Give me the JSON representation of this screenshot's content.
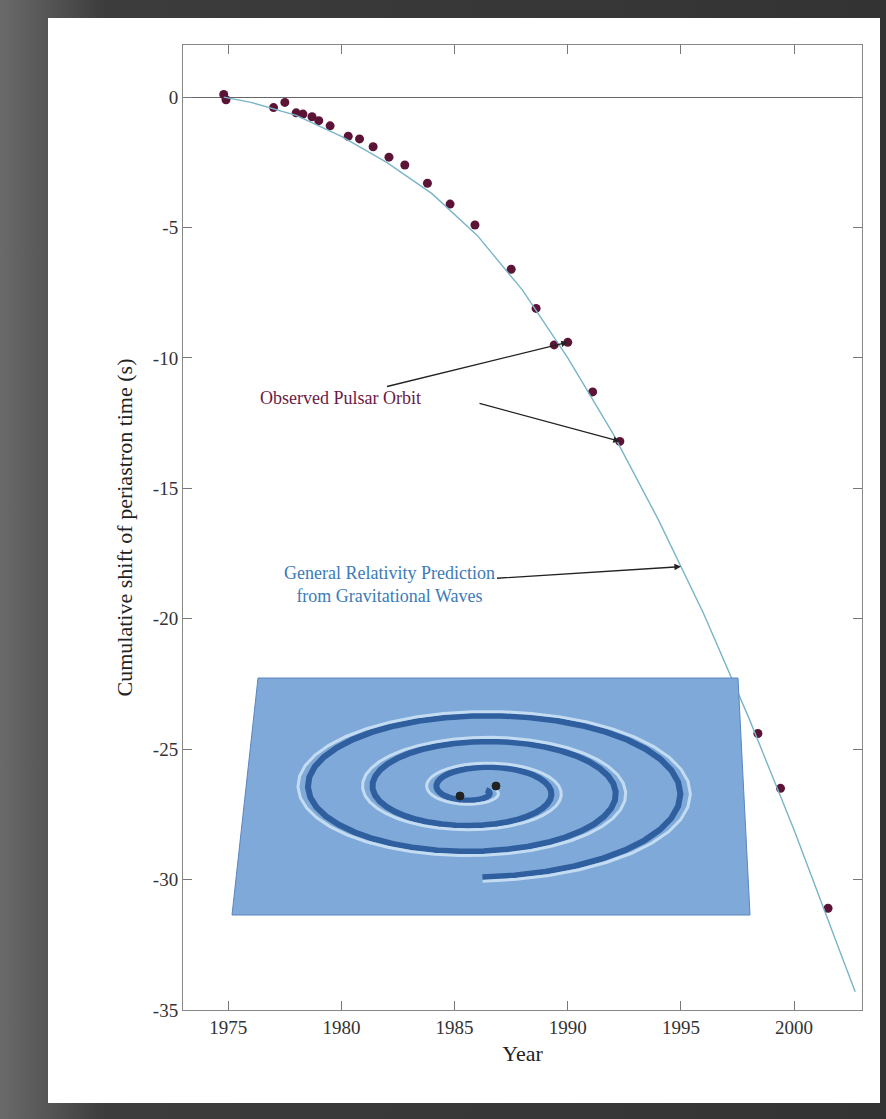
{
  "chart_data": {
    "type": "scatter",
    "x_label": "Year",
    "y_label": "Cumulative shift of periastron time (s)",
    "xlim": [
      1973,
      2003
    ],
    "ylim": [
      -35,
      2
    ],
    "xticks": [
      1975,
      1980,
      1985,
      1990,
      1995,
      2000
    ],
    "yticks": [
      -35,
      -30,
      -25,
      -20,
      -15,
      -10,
      -5,
      0
    ],
    "grid": false,
    "series": [
      {
        "type": "scatter",
        "color": "#5c1436",
        "marker": "circle",
        "x": [
          1974.8,
          1974.9,
          1977.0,
          1977.5,
          1978.0,
          1978.3,
          1978.7,
          1979.0,
          1979.5,
          1980.3,
          1980.8,
          1981.4,
          1982.1,
          1982.8,
          1983.8,
          1984.8,
          1985.9,
          1987.5,
          1988.6,
          1989.4,
          1990.0,
          1991.1,
          1992.3,
          1998.4,
          1999.4,
          2001.5
        ],
        "values": [
          0.1,
          -0.1,
          -0.4,
          -0.2,
          -0.6,
          -0.65,
          -0.75,
          -0.9,
          -1.1,
          -1.5,
          -1.6,
          -1.9,
          -2.3,
          -2.6,
          -3.3,
          -4.1,
          -4.9,
          -6.6,
          -8.1,
          -9.5,
          -9.4,
          -11.3,
          -13.2,
          -24.4,
          -26.5,
          -31.1
        ]
      },
      {
        "type": "line",
        "color": "#79b4c9",
        "line_style": "solid",
        "x": [
          1974.8,
          1976,
          1978,
          1980,
          1982,
          1984,
          1986,
          1988,
          1990,
          1992,
          1994,
          1996,
          1998,
          2000,
          2002,
          2002.7
        ],
        "values": [
          0,
          -0.2,
          -0.7,
          -1.5,
          -2.5,
          -3.7,
          -5.3,
          -7.4,
          -10.0,
          -12.9,
          -16.2,
          -19.8,
          -23.8,
          -28.1,
          -32.7,
          -34.3
        ]
      }
    ],
    "annotations": [
      {
        "text": [
          "Observed Pulsar Orbit"
        ],
        "color": "#6a1a45",
        "x": [
          1990.0,
          1992.3
        ],
        "y": [
          -9.4,
          -13.2
        ]
      },
      {
        "text": [
          "General Relativity Prediction",
          "from Gravitational Waves"
        ],
        "color": "#3b7bb8",
        "x": [
          1995
        ],
        "y": [
          -18.0
        ]
      }
    ]
  }
}
